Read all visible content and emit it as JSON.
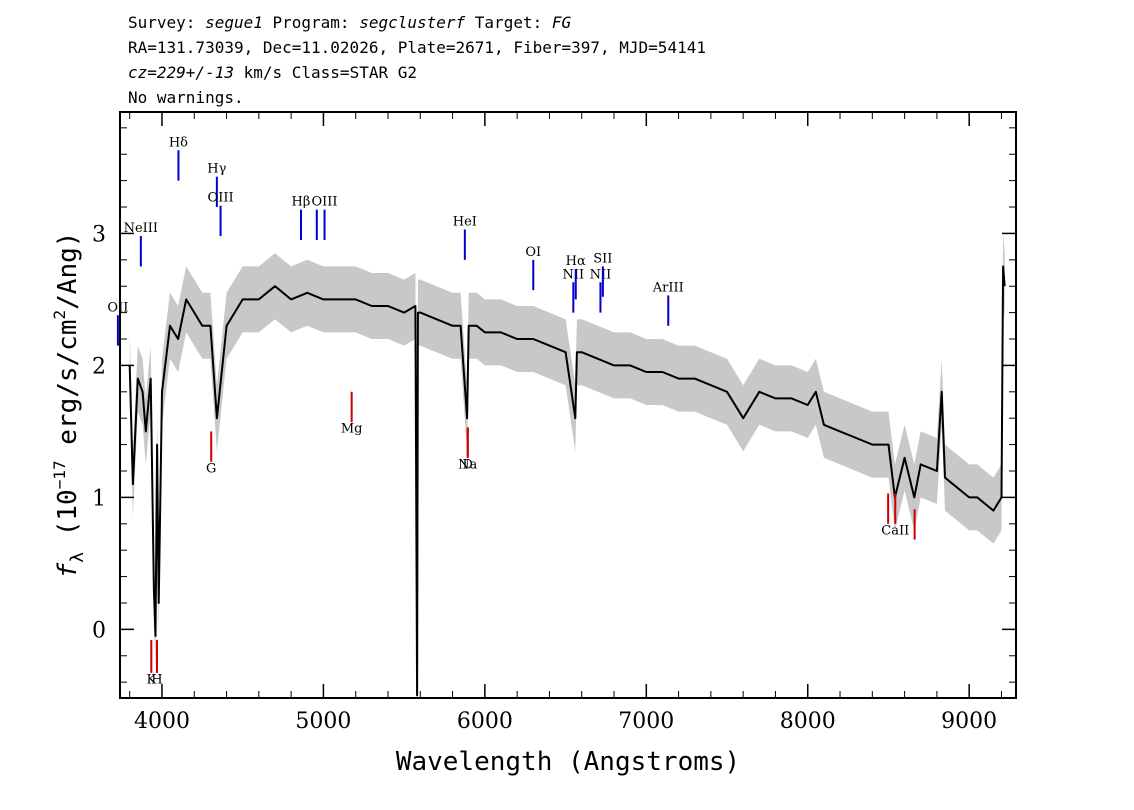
{
  "header": {
    "line1": {
      "survey_label": "Survey: ",
      "survey": "segue1",
      "program_label": " Program: ",
      "program": "segclusterf",
      "target_label": " Target: ",
      "target": "FG"
    },
    "line2": "RA=131.73039, Dec=11.02026, Plate=2671, Fiber=397, MJD=54141",
    "line3": {
      "cz": "cz=229+/-13",
      "rest": " km/s Class=STAR G2"
    },
    "line4": "No warnings."
  },
  "chart_data": {
    "type": "line",
    "title": "",
    "xlabel": "Wavelength (Angstroms)",
    "ylabel": "f_λ (10^-17 erg/s/cm^2/Ang)",
    "ylabel_parts": {
      "f": "f",
      "sub": "λ",
      "open": " (10",
      "exp1": "−17",
      "mid": " erg/s/cm",
      "exp2": "2",
      "end": "/Ang)"
    },
    "xlim": [
      3740,
      9290
    ],
    "ylim": [
      -0.52,
      3.92
    ],
    "x_ticks": [
      4000,
      5000,
      6000,
      7000,
      8000,
      9000
    ],
    "x_tick_labels": [
      "4000",
      "5000",
      "6000",
      "7000",
      "8000",
      "9000"
    ],
    "y_ticks": [
      0,
      1,
      2,
      3
    ],
    "y_tick_labels": [
      "0",
      "1",
      "2",
      "3"
    ],
    "grid": false,
    "series": [
      {
        "name": "",
        "color": "#000000",
        "x": [
          3800,
          3820,
          3850,
          3880,
          3900,
          3930,
          3950,
          3960,
          3970,
          3980,
          4000,
          4050,
          4100,
          4150,
          4200,
          4250,
          4300,
          4340,
          4400,
          4500,
          4600,
          4700,
          4800,
          4900,
          5000,
          5100,
          5200,
          5300,
          5400,
          5500,
          5570,
          5580,
          5585,
          5590,
          5600,
          5700,
          5800,
          5850,
          5890,
          5900,
          5950,
          6000,
          6100,
          6200,
          6300,
          6400,
          6500,
          6560,
          6570,
          6600,
          6700,
          6800,
          6900,
          7000,
          7100,
          7200,
          7300,
          7400,
          7500,
          7600,
          7700,
          7800,
          7900,
          8000,
          8050,
          8100,
          8200,
          8300,
          8400,
          8500,
          8540,
          8600,
          8660,
          8700,
          8800,
          8830,
          8850,
          8900,
          9000,
          9050,
          9100,
          9150,
          9200,
          9210,
          9220
        ],
        "y": [
          2.0,
          1.1,
          1.9,
          1.8,
          1.5,
          1.9,
          0.3,
          -0.05,
          1.4,
          0.2,
          1.8,
          2.3,
          2.2,
          2.5,
          2.4,
          2.3,
          2.3,
          1.6,
          2.3,
          2.5,
          2.5,
          2.6,
          2.5,
          2.55,
          2.5,
          2.5,
          2.5,
          2.45,
          2.45,
          2.4,
          2.45,
          -0.5,
          2.4,
          2.4,
          2.4,
          2.35,
          2.3,
          2.3,
          1.6,
          2.3,
          2.3,
          2.25,
          2.25,
          2.2,
          2.2,
          2.15,
          2.1,
          1.6,
          2.1,
          2.1,
          2.05,
          2.0,
          2.0,
          1.95,
          1.95,
          1.9,
          1.9,
          1.85,
          1.8,
          1.6,
          1.8,
          1.75,
          1.75,
          1.7,
          1.8,
          1.55,
          1.5,
          1.45,
          1.4,
          1.4,
          1.0,
          1.3,
          1.0,
          1.25,
          1.2,
          1.8,
          1.15,
          1.1,
          1.0,
          1.0,
          0.95,
          0.9,
          1.0,
          2.75,
          2.6
        ]
      }
    ],
    "error_band": {
      "color": "#c8c8c8"
    },
    "emission_lines": [
      {
        "label": "OII",
        "x": 3727,
        "color": "#0000cc",
        "y1": 2.15,
        "y2": 2.38,
        "label_y": 2.38
      },
      {
        "label": "NeIII",
        "x": 3869,
        "color": "#0000cc",
        "y1": 2.75,
        "y2": 2.98,
        "label_y": 2.98
      },
      {
        "label": "Hδ",
        "x": 4102,
        "color": "#0000cc",
        "y1": 3.4,
        "y2": 3.63,
        "label_y": 3.63
      },
      {
        "label": "Hγ",
        "x": 4340,
        "color": "#0000cc",
        "y1": 3.2,
        "y2": 3.43,
        "label_y": 3.43
      },
      {
        "label": "OIII",
        "x": 4363,
        "color": "#0000cc",
        "y1": 2.98,
        "y2": 3.21,
        "label_y": 3.21
      },
      {
        "label": "Hβ",
        "x": 4861,
        "color": "#0000cc",
        "y1": 2.95,
        "y2": 3.18,
        "label_y": 3.18
      },
      {
        "label": "",
        "x": 4959,
        "color": "#0000cc",
        "y1": 2.95,
        "y2": 3.18,
        "label_y": 3.18
      },
      {
        "label": "OIII",
        "x": 5007,
        "color": "#0000cc",
        "y1": 2.95,
        "y2": 3.18,
        "label_y": 3.18
      },
      {
        "label": "HeI",
        "x": 5876,
        "color": "#0000cc",
        "y1": 2.8,
        "y2": 3.03,
        "label_y": 3.03
      },
      {
        "label": "OI",
        "x": 6300,
        "color": "#0000cc",
        "y1": 2.57,
        "y2": 2.8,
        "label_y": 2.8
      },
      {
        "label": "NII",
        "x": 6548,
        "color": "#0000cc",
        "y1": 2.4,
        "y2": 2.63,
        "label_y": 2.63
      },
      {
        "label": "Hα",
        "x": 6563,
        "color": "#0000cc",
        "y1": 2.5,
        "y2": 2.73,
        "label_y": 2.73
      },
      {
        "label": "NII",
        "x": 6716,
        "color": "#0000cc",
        "y1": 2.4,
        "y2": 2.63,
        "label_y": 2.63
      },
      {
        "label": "SII",
        "x": 6731,
        "color": "#0000cc",
        "y1": 2.52,
        "y2": 2.75,
        "label_y": 2.75
      },
      {
        "label": "ArIII",
        "x": 7136,
        "color": "#0000cc",
        "y1": 2.3,
        "y2": 2.53,
        "label_y": 2.53
      }
    ],
    "absorption_lines": [
      {
        "label": "K",
        "x": 3934,
        "color": "#cc0000",
        "y1": -0.33,
        "y2": -0.08,
        "label_y": -0.44
      },
      {
        "label": "H",
        "x": 3969,
        "color": "#cc0000",
        "y1": -0.33,
        "y2": -0.08,
        "label_y": -0.44
      },
      {
        "label": "G",
        "x": 4305,
        "color": "#cc0000",
        "y1": 1.27,
        "y2": 1.5,
        "label_y": 1.16
      },
      {
        "label": "Mg",
        "x": 5175,
        "color": "#cc0000",
        "y1": 1.57,
        "y2": 1.8,
        "label_y": 1.46
      },
      {
        "label": "Na",
        "x": 5894,
        "color": "#cc0000",
        "y1": 1.3,
        "y2": 1.53,
        "label_y": 1.19
      },
      {
        "label": "D",
        "x": 5894,
        "color": "#cc0000",
        "y1": 1.3,
        "y2": 1.53,
        "label_y": 1.19
      },
      {
        "label": "",
        "x": 8498,
        "color": "#cc0000",
        "y1": 0.8,
        "y2": 1.03,
        "label_y": 0.69
      },
      {
        "label": "CaII",
        "x": 8542,
        "color": "#cc0000",
        "y1": 0.8,
        "y2": 1.03,
        "label_y": 0.69
      },
      {
        "label": "",
        "x": 8662,
        "color": "#cc0000",
        "y1": 0.68,
        "y2": 0.91,
        "label_y": 0.58
      }
    ]
  }
}
